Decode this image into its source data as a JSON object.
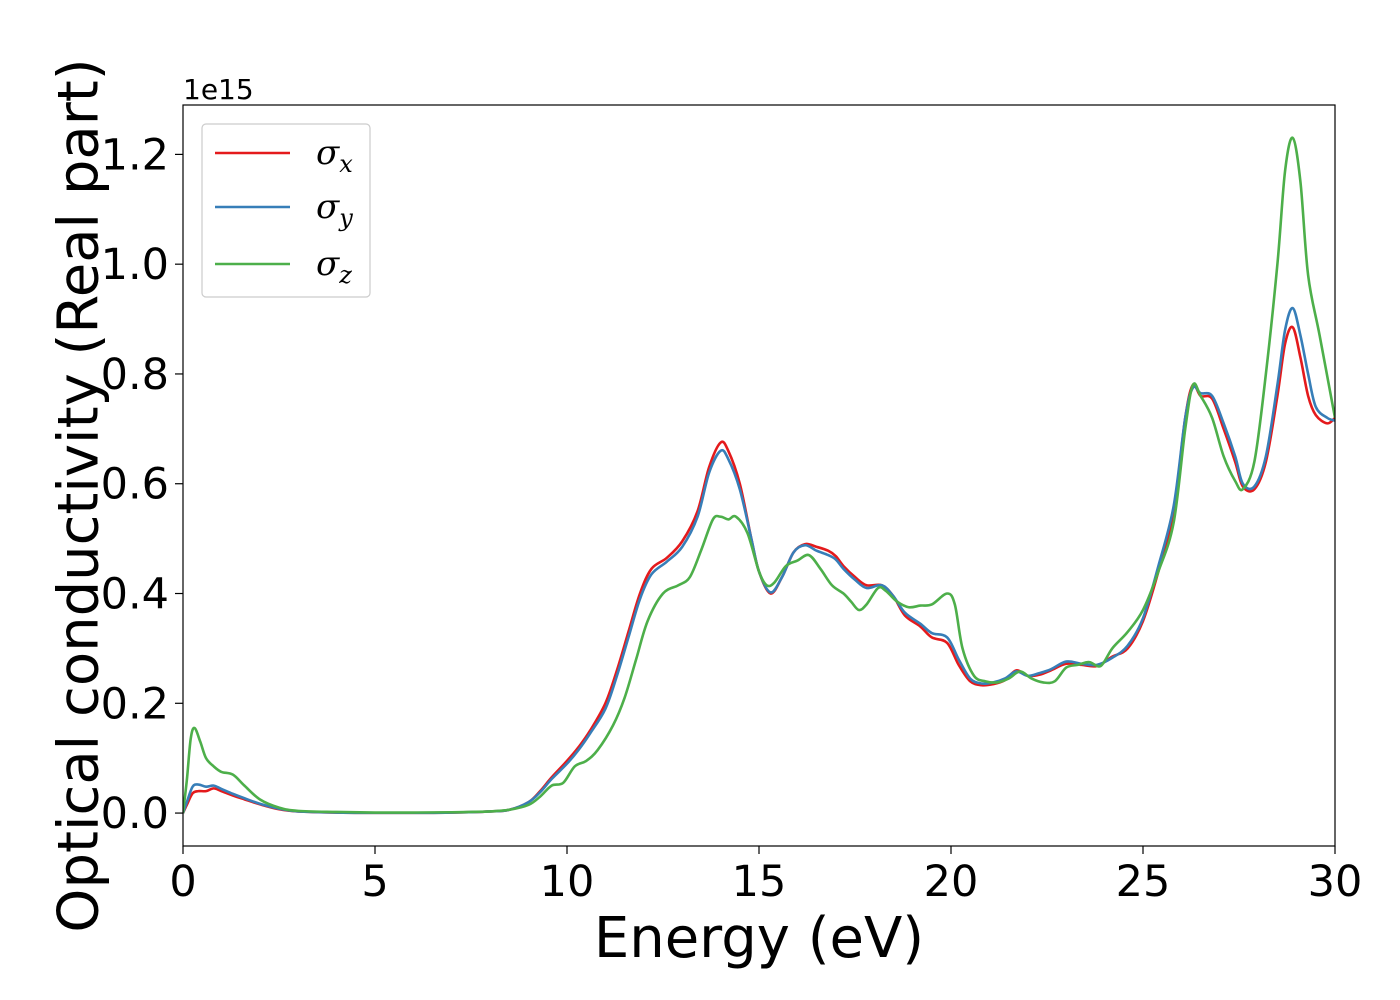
{
  "chart_data": {
    "type": "line",
    "xlabel": "Energy (eV)",
    "ylabel": "Optical conductivity (Real part)",
    "y_offset_label": "1e15",
    "xlim": [
      0,
      30
    ],
    "ylim": [
      -0.06,
      1.29
    ],
    "x_ticks": [
      0,
      5,
      10,
      15,
      20,
      25,
      30
    ],
    "x_tick_labels": [
      "0",
      "5",
      "10",
      "15",
      "20",
      "25",
      "30"
    ],
    "y_ticks": [
      0.0,
      0.2,
      0.4,
      0.6,
      0.8,
      1.0,
      1.2
    ],
    "y_tick_labels": [
      "0.0",
      "0.2",
      "0.4",
      "0.6",
      "0.8",
      "1.0",
      "1.2"
    ],
    "grid": false,
    "legend_position": "top-left",
    "series": [
      {
        "name": "σx",
        "symbol": "σ",
        "subscript": "x",
        "color": "#e41a1c",
        "points": [
          [
            0,
            0
          ],
          [
            0.1,
            0.015
          ],
          [
            0.25,
            0.036
          ],
          [
            0.4,
            0.04
          ],
          [
            0.6,
            0.04
          ],
          [
            0.8,
            0.045
          ],
          [
            1.0,
            0.04
          ],
          [
            1.3,
            0.032
          ],
          [
            1.6,
            0.025
          ],
          [
            2.0,
            0.016
          ],
          [
            2.5,
            0.007
          ],
          [
            3,
            0.003
          ],
          [
            4,
            0.001
          ],
          [
            5,
            0.0005
          ],
          [
            6,
            0.0005
          ],
          [
            7,
            0.001
          ],
          [
            8,
            0.003
          ],
          [
            8.5,
            0.006
          ],
          [
            9.0,
            0.02
          ],
          [
            9.3,
            0.04
          ],
          [
            9.6,
            0.065
          ],
          [
            10,
            0.095
          ],
          [
            10.3,
            0.12
          ],
          [
            10.6,
            0.15
          ],
          [
            11,
            0.2
          ],
          [
            11.3,
            0.26
          ],
          [
            11.6,
            0.33
          ],
          [
            11.9,
            0.4
          ],
          [
            12.2,
            0.445
          ],
          [
            12.6,
            0.465
          ],
          [
            13,
            0.495
          ],
          [
            13.4,
            0.55
          ],
          [
            13.7,
            0.63
          ],
          [
            14.0,
            0.675
          ],
          [
            14.2,
            0.66
          ],
          [
            14.5,
            0.6
          ],
          [
            14.8,
            0.5
          ],
          [
            15.0,
            0.44
          ],
          [
            15.3,
            0.4
          ],
          [
            15.6,
            0.43
          ],
          [
            15.9,
            0.475
          ],
          [
            16.2,
            0.49
          ],
          [
            16.5,
            0.485
          ],
          [
            16.8,
            0.478
          ],
          [
            17.0,
            0.468
          ],
          [
            17.2,
            0.45
          ],
          [
            17.5,
            0.43
          ],
          [
            17.8,
            0.415
          ],
          [
            18.2,
            0.415
          ],
          [
            18.5,
            0.395
          ],
          [
            18.8,
            0.36
          ],
          [
            19.2,
            0.34
          ],
          [
            19.5,
            0.32
          ],
          [
            19.9,
            0.31
          ],
          [
            20.2,
            0.27
          ],
          [
            20.5,
            0.24
          ],
          [
            20.8,
            0.233
          ],
          [
            21.1,
            0.235
          ],
          [
            21.4,
            0.242
          ],
          [
            21.7,
            0.26
          ],
          [
            22.0,
            0.25
          ],
          [
            22.3,
            0.252
          ],
          [
            22.6,
            0.26
          ],
          [
            23.0,
            0.272
          ],
          [
            23.4,
            0.27
          ],
          [
            23.8,
            0.268
          ],
          [
            24.2,
            0.285
          ],
          [
            24.6,
            0.3
          ],
          [
            25.0,
            0.35
          ],
          [
            25.4,
            0.44
          ],
          [
            25.8,
            0.55
          ],
          [
            26.1,
            0.72
          ],
          [
            26.3,
            0.78
          ],
          [
            26.5,
            0.76
          ],
          [
            26.8,
            0.755
          ],
          [
            27.1,
            0.7
          ],
          [
            27.4,
            0.64
          ],
          [
            27.6,
            0.595
          ],
          [
            27.9,
            0.59
          ],
          [
            28.2,
            0.64
          ],
          [
            28.5,
            0.76
          ],
          [
            28.7,
            0.855
          ],
          [
            28.9,
            0.885
          ],
          [
            29.1,
            0.83
          ],
          [
            29.3,
            0.76
          ],
          [
            29.5,
            0.725
          ],
          [
            29.8,
            0.71
          ],
          [
            30.0,
            0.72
          ]
        ]
      },
      {
        "name": "σy",
        "symbol": "σ",
        "subscript": "y",
        "color": "#377eb8",
        "points": [
          [
            0,
            0
          ],
          [
            0.1,
            0.02
          ],
          [
            0.25,
            0.048
          ],
          [
            0.4,
            0.052
          ],
          [
            0.6,
            0.048
          ],
          [
            0.8,
            0.05
          ],
          [
            1.0,
            0.044
          ],
          [
            1.3,
            0.035
          ],
          [
            1.6,
            0.027
          ],
          [
            2.0,
            0.017
          ],
          [
            2.5,
            0.008
          ],
          [
            3,
            0.003
          ],
          [
            4,
            0.001
          ],
          [
            5,
            0.0005
          ],
          [
            6,
            0.0005
          ],
          [
            7,
            0.001
          ],
          [
            8,
            0.003
          ],
          [
            8.5,
            0.006
          ],
          [
            9.0,
            0.02
          ],
          [
            9.3,
            0.038
          ],
          [
            9.6,
            0.062
          ],
          [
            10,
            0.09
          ],
          [
            10.3,
            0.115
          ],
          [
            10.6,
            0.145
          ],
          [
            11,
            0.19
          ],
          [
            11.3,
            0.25
          ],
          [
            11.6,
            0.32
          ],
          [
            11.9,
            0.39
          ],
          [
            12.2,
            0.435
          ],
          [
            12.6,
            0.458
          ],
          [
            13,
            0.485
          ],
          [
            13.4,
            0.54
          ],
          [
            13.7,
            0.62
          ],
          [
            14.0,
            0.66
          ],
          [
            14.2,
            0.645
          ],
          [
            14.5,
            0.59
          ],
          [
            14.8,
            0.5
          ],
          [
            15.0,
            0.44
          ],
          [
            15.3,
            0.402
          ],
          [
            15.6,
            0.43
          ],
          [
            15.9,
            0.475
          ],
          [
            16.2,
            0.488
          ],
          [
            16.5,
            0.478
          ],
          [
            16.8,
            0.47
          ],
          [
            17.0,
            0.462
          ],
          [
            17.2,
            0.445
          ],
          [
            17.5,
            0.425
          ],
          [
            17.8,
            0.41
          ],
          [
            18.2,
            0.415
          ],
          [
            18.5,
            0.395
          ],
          [
            18.8,
            0.365
          ],
          [
            19.2,
            0.345
          ],
          [
            19.5,
            0.328
          ],
          [
            19.9,
            0.32
          ],
          [
            20.2,
            0.28
          ],
          [
            20.5,
            0.245
          ],
          [
            20.8,
            0.236
          ],
          [
            21.1,
            0.238
          ],
          [
            21.4,
            0.245
          ],
          [
            21.7,
            0.258
          ],
          [
            22.0,
            0.25
          ],
          [
            22.3,
            0.255
          ],
          [
            22.6,
            0.262
          ],
          [
            23.0,
            0.276
          ],
          [
            23.4,
            0.272
          ],
          [
            23.8,
            0.27
          ],
          [
            24.2,
            0.283
          ],
          [
            24.6,
            0.305
          ],
          [
            25.0,
            0.355
          ],
          [
            25.4,
            0.45
          ],
          [
            25.8,
            0.56
          ],
          [
            26.1,
            0.72
          ],
          [
            26.3,
            0.775
          ],
          [
            26.5,
            0.765
          ],
          [
            26.8,
            0.76
          ],
          [
            27.1,
            0.71
          ],
          [
            27.4,
            0.65
          ],
          [
            27.6,
            0.6
          ],
          [
            27.9,
            0.595
          ],
          [
            28.2,
            0.65
          ],
          [
            28.5,
            0.78
          ],
          [
            28.7,
            0.88
          ],
          [
            28.9,
            0.92
          ],
          [
            29.1,
            0.87
          ],
          [
            29.3,
            0.8
          ],
          [
            29.5,
            0.74
          ],
          [
            29.8,
            0.72
          ],
          [
            30.0,
            0.715
          ]
        ]
      },
      {
        "name": "σz",
        "symbol": "σ",
        "subscript": "z",
        "color": "#4daf4a",
        "points": [
          [
            0,
            0
          ],
          [
            0.1,
            0.06
          ],
          [
            0.2,
            0.135
          ],
          [
            0.3,
            0.155
          ],
          [
            0.45,
            0.13
          ],
          [
            0.6,
            0.1
          ],
          [
            0.8,
            0.085
          ],
          [
            1.0,
            0.075
          ],
          [
            1.3,
            0.07
          ],
          [
            1.6,
            0.05
          ],
          [
            2.0,
            0.025
          ],
          [
            2.5,
            0.01
          ],
          [
            3,
            0.004
          ],
          [
            4,
            0.002
          ],
          [
            5,
            0.001
          ],
          [
            6,
            0.001
          ],
          [
            7,
            0.0015
          ],
          [
            8,
            0.003
          ],
          [
            8.5,
            0.006
          ],
          [
            9.0,
            0.015
          ],
          [
            9.3,
            0.03
          ],
          [
            9.6,
            0.05
          ],
          [
            9.9,
            0.055
          ],
          [
            10.2,
            0.085
          ],
          [
            10.5,
            0.095
          ],
          [
            10.8,
            0.115
          ],
          [
            11.2,
            0.16
          ],
          [
            11.5,
            0.21
          ],
          [
            11.8,
            0.28
          ],
          [
            12.1,
            0.35
          ],
          [
            12.5,
            0.4
          ],
          [
            12.9,
            0.415
          ],
          [
            13.2,
            0.43
          ],
          [
            13.5,
            0.48
          ],
          [
            13.8,
            0.535
          ],
          [
            14.0,
            0.54
          ],
          [
            14.2,
            0.535
          ],
          [
            14.4,
            0.54
          ],
          [
            14.7,
            0.51
          ],
          [
            15.0,
            0.44
          ],
          [
            15.2,
            0.415
          ],
          [
            15.4,
            0.42
          ],
          [
            15.7,
            0.45
          ],
          [
            16.0,
            0.46
          ],
          [
            16.3,
            0.47
          ],
          [
            16.6,
            0.445
          ],
          [
            16.9,
            0.415
          ],
          [
            17.2,
            0.4
          ],
          [
            17.4,
            0.385
          ],
          [
            17.6,
            0.37
          ],
          [
            17.8,
            0.38
          ],
          [
            18.1,
            0.41
          ],
          [
            18.3,
            0.405
          ],
          [
            18.6,
            0.385
          ],
          [
            18.9,
            0.375
          ],
          [
            19.2,
            0.378
          ],
          [
            19.5,
            0.38
          ],
          [
            19.9,
            0.4
          ],
          [
            20.1,
            0.38
          ],
          [
            20.3,
            0.3
          ],
          [
            20.6,
            0.25
          ],
          [
            20.9,
            0.24
          ],
          [
            21.2,
            0.238
          ],
          [
            21.5,
            0.245
          ],
          [
            21.8,
            0.258
          ],
          [
            22.1,
            0.245
          ],
          [
            22.4,
            0.238
          ],
          [
            22.7,
            0.24
          ],
          [
            23.0,
            0.265
          ],
          [
            23.3,
            0.27
          ],
          [
            23.6,
            0.275
          ],
          [
            23.9,
            0.268
          ],
          [
            24.2,
            0.3
          ],
          [
            24.6,
            0.33
          ],
          [
            25.0,
            0.37
          ],
          [
            25.4,
            0.44
          ],
          [
            25.8,
            0.53
          ],
          [
            26.1,
            0.7
          ],
          [
            26.3,
            0.78
          ],
          [
            26.5,
            0.76
          ],
          [
            26.8,
            0.72
          ],
          [
            27.1,
            0.65
          ],
          [
            27.4,
            0.605
          ],
          [
            27.6,
            0.59
          ],
          [
            27.9,
            0.64
          ],
          [
            28.2,
            0.8
          ],
          [
            28.5,
            1.0
          ],
          [
            28.7,
            1.17
          ],
          [
            28.9,
            1.23
          ],
          [
            29.1,
            1.15
          ],
          [
            29.3,
            0.98
          ],
          [
            29.6,
            0.87
          ],
          [
            30.0,
            0.72
          ]
        ]
      }
    ]
  }
}
